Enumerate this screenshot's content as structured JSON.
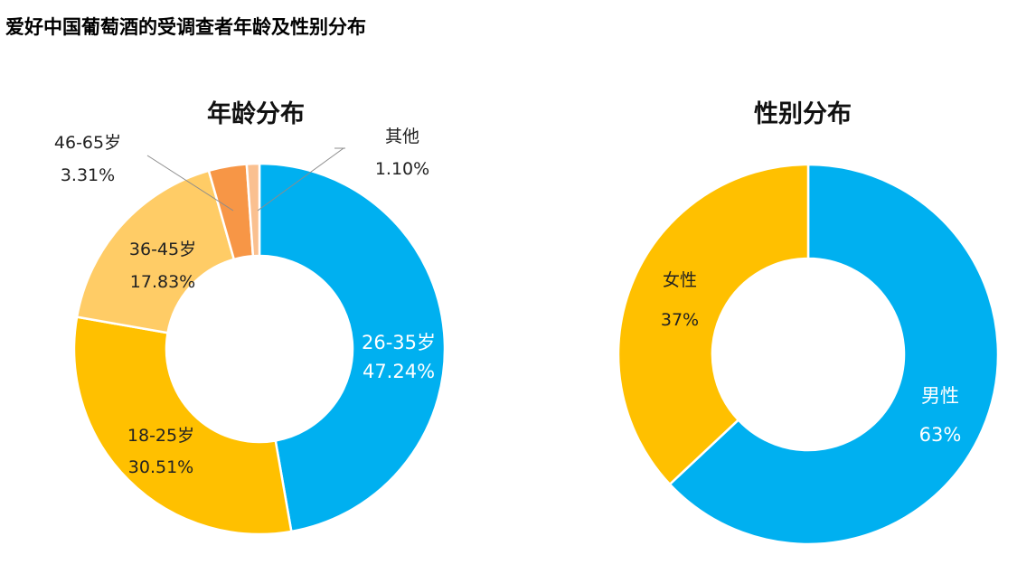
{
  "title": "爱好中国葡萄酒的受调查者年龄及性别分布",
  "chart_data": [
    {
      "type": "pie",
      "title": "年龄分布",
      "slices": [
        {
          "label": "26-35岁",
          "value_label": "47.24%",
          "value": 47.24,
          "color": "#00B0F0"
        },
        {
          "label": "18-25岁",
          "value_label": "30.51%",
          "value": 30.51,
          "color": "#FFC000"
        },
        {
          "label": "36-45岁",
          "value_label": "17.83%",
          "value": 17.83,
          "color": "#FFCC66"
        },
        {
          "label": "46-65岁",
          "value_label": "3.31%",
          "value": 3.31,
          "color": "#F79646"
        },
        {
          "label": "其他",
          "value_label": "1.10%",
          "value": 1.1,
          "color": "#FAC090"
        }
      ]
    },
    {
      "type": "pie",
      "title": "性别分布",
      "slices": [
        {
          "label": "男性",
          "value_label": "63%",
          "value": 63,
          "color": "#00B0F0"
        },
        {
          "label": "女性",
          "value_label": "37%",
          "value": 37,
          "color": "#FFC000"
        }
      ]
    }
  ]
}
